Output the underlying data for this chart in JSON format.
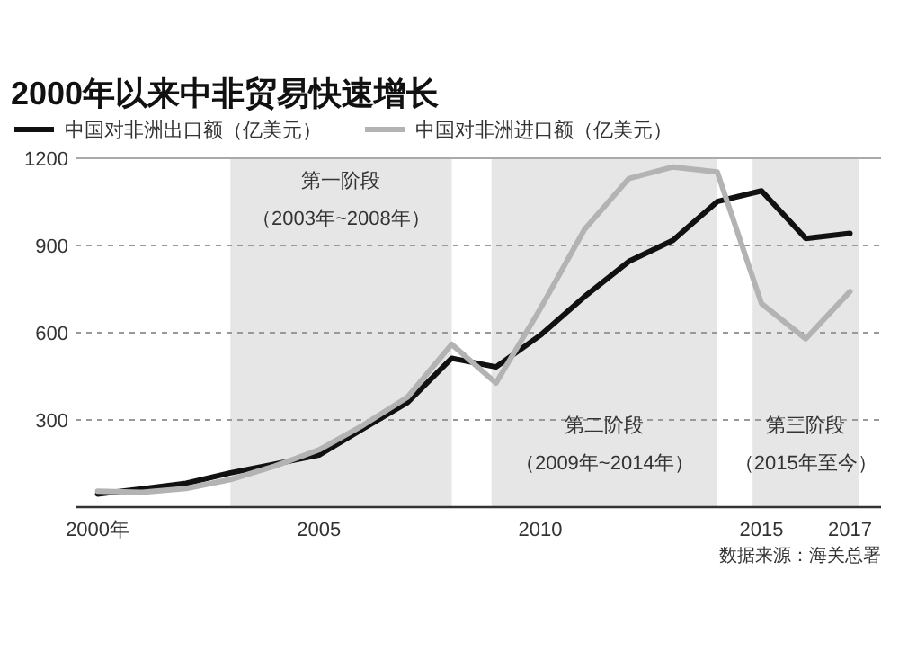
{
  "chart_data": {
    "type": "line",
    "title": "2000年以来中非贸易快速增长",
    "x": [
      2000,
      2001,
      2002,
      2003,
      2004,
      2005,
      2006,
      2007,
      2008,
      2009,
      2010,
      2011,
      2012,
      2013,
      2014,
      2015,
      2016,
      2017
    ],
    "series": [
      {
        "name": "中国对非洲出口额（亿美元）",
        "color": "#111111",
        "values": [
          45,
          63,
          82,
          118,
          148,
          179,
          270,
          360,
          512,
          482,
          591,
          724,
          845,
          918,
          1051,
          1088,
          924,
          942
        ]
      },
      {
        "name": "中国对非洲进口额（亿美元）",
        "color": "#b3b3b3",
        "values": [
          55,
          51,
          64,
          95,
          141,
          197,
          282,
          378,
          560,
          427,
          682,
          955,
          1130,
          1170,
          1153,
          700,
          579,
          742
        ]
      }
    ],
    "xlim": [
      1999.5,
      2017.7
    ],
    "xticks": [
      {
        "value": 2000,
        "label": "2000年"
      },
      2005,
      2010,
      2015,
      2017
    ],
    "ylim": [
      0,
      1200
    ],
    "yticks": [
      300,
      600,
      900,
      1200
    ],
    "grid": "y",
    "legend": "top",
    "marker": "none",
    "line_style": "solid",
    "bands": [
      {
        "axis": "x",
        "from": 2003,
        "to": 2008,
        "label": "第一阶段（2003年~2008年）",
        "color": "#e6e6e6"
      },
      {
        "axis": "x",
        "from": 2008.9,
        "to": 2014,
        "label": "第二阶段（2009年~2014年）",
        "color": "#e6e6e6"
      },
      {
        "axis": "x",
        "from": 2014.8,
        "to": 2017.2,
        "label": "第三阶段（2015年至今）",
        "color": "#e6e6e6"
      }
    ],
    "annotations": [
      "数据来源：海关总署"
    ]
  }
}
